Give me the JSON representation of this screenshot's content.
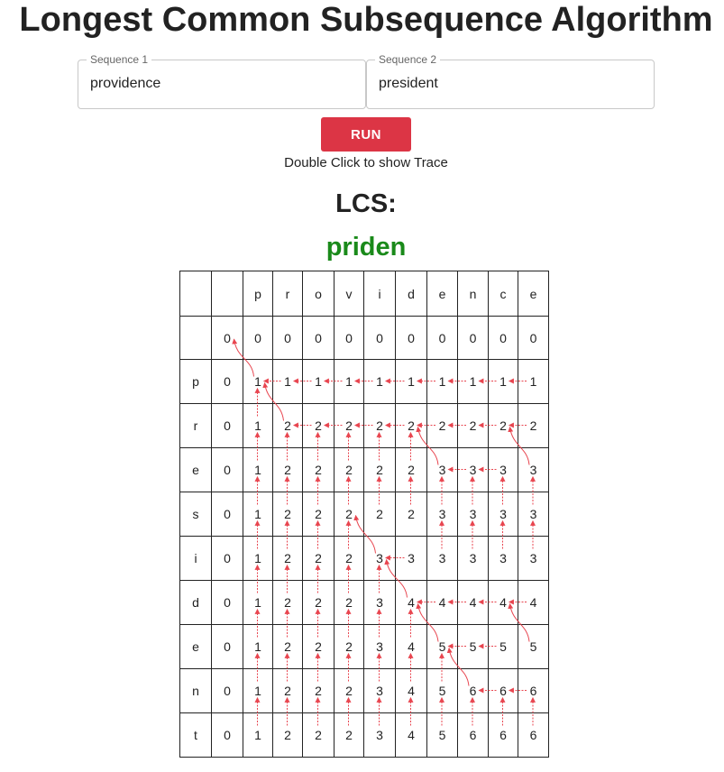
{
  "title": "Longest Common Subsequence Algorithm",
  "inputs": {
    "seq1": {
      "label": "Sequence 1",
      "value": "providence"
    },
    "seq2": {
      "label": "Sequence 2",
      "value": "president"
    }
  },
  "run_label": "RUN",
  "hint": "Double Click to show Trace",
  "lcs_label": "LCS:",
  "lcs_value": "priden",
  "table": {
    "col_headers": [
      "p",
      "r",
      "o",
      "v",
      "i",
      "d",
      "e",
      "n",
      "c",
      "e"
    ],
    "row_headers": [
      "p",
      "r",
      "e",
      "s",
      "i",
      "d",
      "e",
      "n",
      "t"
    ],
    "zero_row": [
      0,
      0,
      0,
      0,
      0,
      0,
      0,
      0,
      0,
      0,
      0
    ],
    "rows": [
      [
        0,
        1,
        1,
        1,
        1,
        1,
        1,
        1,
        1,
        1,
        1
      ],
      [
        0,
        1,
        2,
        2,
        2,
        2,
        2,
        2,
        2,
        2,
        2
      ],
      [
        0,
        1,
        2,
        2,
        2,
        2,
        2,
        3,
        3,
        3,
        3
      ],
      [
        0,
        1,
        2,
        2,
        2,
        2,
        2,
        3,
        3,
        3,
        3
      ],
      [
        0,
        1,
        2,
        2,
        2,
        3,
        3,
        3,
        3,
        3,
        3
      ],
      [
        0,
        1,
        2,
        2,
        2,
        3,
        4,
        4,
        4,
        4,
        4
      ],
      [
        0,
        1,
        2,
        2,
        2,
        3,
        4,
        5,
        5,
        5,
        5
      ],
      [
        0,
        1,
        2,
        2,
        2,
        3,
        4,
        5,
        6,
        6,
        6
      ],
      [
        0,
        1,
        2,
        2,
        2,
        3,
        4,
        5,
        6,
        6,
        6
      ]
    ],
    "trace_path": [
      [
        9,
        10
      ],
      [
        8,
        9
      ],
      [
        7,
        8
      ],
      [
        7,
        7
      ],
      [
        6,
        7
      ],
      [
        5,
        6
      ],
      [
        4,
        5
      ],
      [
        3,
        4
      ],
      [
        3,
        3
      ],
      [
        2,
        2
      ],
      [
        1,
        1
      ],
      [
        0,
        0
      ]
    ]
  },
  "colors": {
    "accent": "#dc3545",
    "lcs": "#1a8a1a",
    "arrow": "#e8454f"
  }
}
